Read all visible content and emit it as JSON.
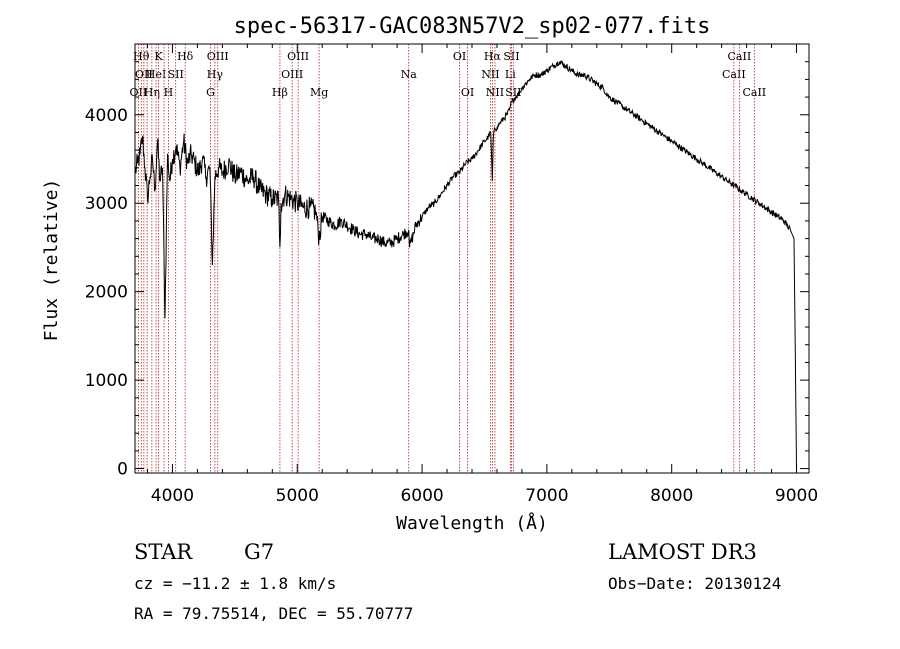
{
  "chart_data": {
    "type": "line",
    "title": "spec-56317-GAC083N57V2_sp02-077.fits",
    "xlabel": "Wavelength (Å)",
    "ylabel": "Flux (relative)",
    "xlim": [
      3700,
      9100
    ],
    "ylim": [
      -50,
      4800
    ],
    "x_ticks": [
      4000,
      5000,
      6000,
      7000,
      8000,
      9000
    ],
    "y_ticks": [
      0,
      1000,
      2000,
      3000,
      4000
    ],
    "x_tick_labels": [
      "4000",
      "5000",
      "6000",
      "7000",
      "8000",
      "9000"
    ],
    "y_tick_labels": [
      "0",
      "1000",
      "2000",
      "3000",
      "4000"
    ],
    "grid": false,
    "series": [
      {
        "name": "flux",
        "x": [
          3700,
          3720,
          3740,
          3760,
          3780,
          3800,
          3820,
          3840,
          3860,
          3880,
          3900,
          3920,
          3940,
          3960,
          3980,
          4000,
          4030,
          4060,
          4090,
          4120,
          4150,
          4180,
          4210,
          4240,
          4270,
          4300,
          4320,
          4340,
          4370,
          4400,
          4450,
          4500,
          4550,
          4600,
          4650,
          4700,
          4750,
          4800,
          4850,
          4861,
          4870,
          4900,
          4950,
          5000,
          5050,
          5100,
          5150,
          5175,
          5200,
          5250,
          5300,
          5350,
          5400,
          5450,
          5500,
          5550,
          5600,
          5650,
          5700,
          5750,
          5800,
          5850,
          5893,
          5900,
          5950,
          6000,
          6050,
          6100,
          6150,
          6200,
          6250,
          6300,
          6350,
          6400,
          6450,
          6500,
          6530,
          6550,
          6563,
          6570,
          6580,
          6600,
          6620,
          6650,
          6680,
          6700,
          6720,
          6750,
          6780,
          6800,
          6830,
          6860,
          6900,
          6950,
          7000,
          7050,
          7100,
          7150,
          7200,
          7250,
          7300,
          7350,
          7400,
          7450,
          7500,
          7550,
          7600,
          7650,
          7700,
          7750,
          7800,
          7850,
          7900,
          7950,
          8000,
          8050,
          8100,
          8150,
          8200,
          8250,
          8300,
          8350,
          8400,
          8450,
          8500,
          8550,
          8600,
          8650,
          8700,
          8750,
          8800,
          8850,
          8900,
          8950,
          8980,
          8990,
          9000
        ],
        "y": [
          3350,
          3450,
          3550,
          3750,
          3400,
          3050,
          3300,
          3500,
          3150,
          3700,
          3250,
          3400,
          1700,
          3550,
          3250,
          3500,
          3650,
          3400,
          3700,
          3450,
          3550,
          3450,
          3350,
          3500,
          3300,
          3400,
          2300,
          3300,
          3400,
          3350,
          3450,
          3300,
          3350,
          3250,
          3300,
          3150,
          3100,
          3050,
          3050,
          2500,
          3000,
          3100,
          3050,
          3000,
          2950,
          2950,
          2900,
          2600,
          2850,
          2800,
          2750,
          2800,
          2750,
          2700,
          2650,
          2650,
          2600,
          2600,
          2550,
          2550,
          2600,
          2650,
          2700,
          2500,
          2750,
          2850,
          2950,
          3000,
          3100,
          3200,
          3300,
          3350,
          3450,
          3500,
          3600,
          3700,
          3750,
          3800,
          3250,
          3700,
          3850,
          3850,
          3900,
          3950,
          4000,
          4050,
          4150,
          4200,
          4250,
          4300,
          4350,
          4400,
          4450,
          4450,
          4500,
          4550,
          4600,
          4550,
          4500,
          4450,
          4450,
          4400,
          4350,
          4300,
          4200,
          4150,
          4100,
          4050,
          4000,
          3950,
          3900,
          3850,
          3800,
          3750,
          3700,
          3650,
          3600,
          3550,
          3500,
          3450,
          3400,
          3350,
          3300,
          3250,
          3200,
          3150,
          3100,
          3050,
          3000,
          2950,
          2900,
          2850,
          2800,
          2700,
          2600,
          1300,
          0
        ]
      }
    ],
    "line_markers": [
      {
        "wavelength": 3727,
        "labels": [
          "OII"
        ],
        "level": 2
      },
      {
        "wavelength": 3750,
        "labels": [
          "Hθ"
        ],
        "level": 0
      },
      {
        "wavelength": 3771,
        "labels": [
          "OII"
        ],
        "level": 1
      },
      {
        "wavelength": 3797,
        "labels": [],
        "level": 0
      },
      {
        "wavelength": 3835,
        "labels": [
          "Hη"
        ],
        "level": 2
      },
      {
        "wavelength": 3869,
        "labels": [
          "HeI"
        ],
        "level": 1
      },
      {
        "wavelength": 3889,
        "labels": [
          "K"
        ],
        "level": 0
      },
      {
        "wavelength": 3933,
        "labels": [],
        "level": 0
      },
      {
        "wavelength": 3968,
        "labels": [
          "H"
        ],
        "level": 2
      },
      {
        "wavelength": 4026,
        "labels": [
          "SII"
        ],
        "level": 1
      },
      {
        "wavelength": 4102,
        "labels": [
          "Hδ"
        ],
        "level": 0
      },
      {
        "wavelength": 4305,
        "labels": [
          "G"
        ],
        "level": 2
      },
      {
        "wavelength": 4340,
        "labels": [
          "Hγ"
        ],
        "level": 1
      },
      {
        "wavelength": 4363,
        "labels": [
          "OIII"
        ],
        "level": 0
      },
      {
        "wavelength": 4861,
        "labels": [
          "Hβ"
        ],
        "level": 2
      },
      {
        "wavelength": 4959,
        "labels": [
          "OIII"
        ],
        "level": 1
      },
      {
        "wavelength": 5007,
        "labels": [
          "OIII"
        ],
        "level": 0
      },
      {
        "wavelength": 5175,
        "labels": [
          "Mg"
        ],
        "level": 2
      },
      {
        "wavelength": 5893,
        "labels": [
          "Na"
        ],
        "level": 1
      },
      {
        "wavelength": 6300,
        "labels": [
          "OI"
        ],
        "level": 0
      },
      {
        "wavelength": 6364,
        "labels": [
          "OI"
        ],
        "level": 2
      },
      {
        "wavelength": 6548,
        "labels": [
          "NII"
        ],
        "level": 1
      },
      {
        "wavelength": 6563,
        "labels": [
          "Hα"
        ],
        "level": 0
      },
      {
        "wavelength": 6584,
        "labels": [
          "NII"
        ],
        "level": 2
      },
      {
        "wavelength": 6707,
        "labels": [
          "Li"
        ],
        "level": 1
      },
      {
        "wavelength": 6716,
        "labels": [
          "SII"
        ],
        "level": 0
      },
      {
        "wavelength": 6731,
        "labels": [
          "SII"
        ],
        "level": 2
      },
      {
        "wavelength": 8498,
        "labels": [
          "CaII"
        ],
        "level": 1
      },
      {
        "wavelength": 8542,
        "labels": [
          "CaII"
        ],
        "level": 0
      },
      {
        "wavelength": 8662,
        "labels": [
          "CaII"
        ],
        "level": 2
      }
    ]
  },
  "info": {
    "object_class": "STAR",
    "subclass": "G7",
    "survey": "LAMOST DR3",
    "redshift": "cz = −11.2 ± 1.8 km/s",
    "obs_date": "Obs−Date: 20130124",
    "coords": "RA =  79.75514, DEC =  55.70777"
  },
  "colors": {
    "line": "#000000",
    "marker": "#b22222",
    "axis": "#000000"
  }
}
